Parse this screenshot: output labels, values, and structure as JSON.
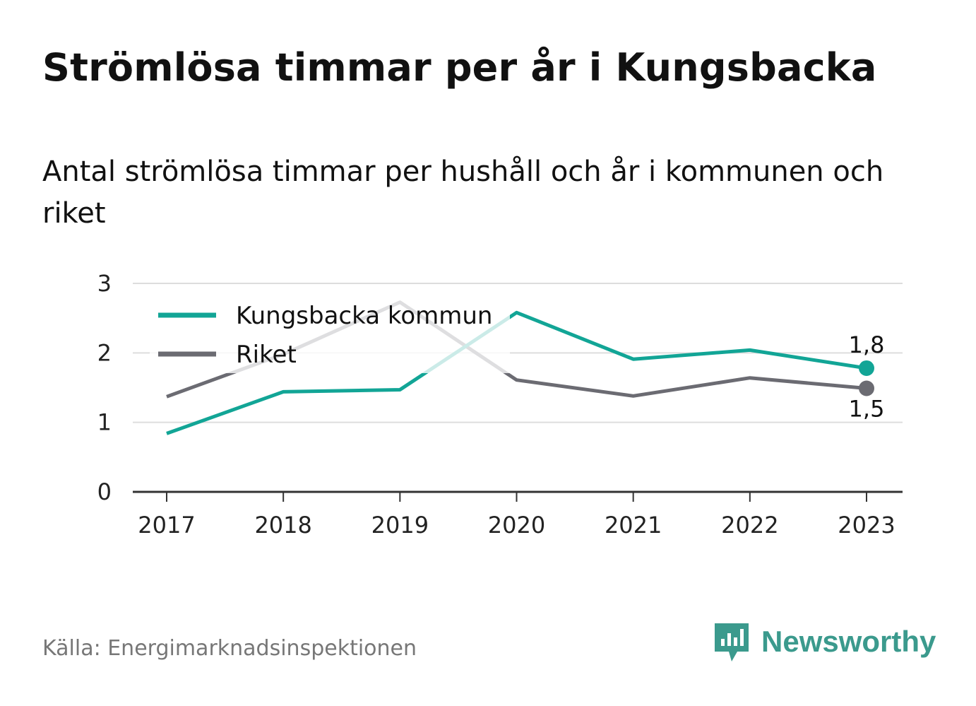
{
  "title": "Strömlösa timmar per år i Kungsbacka",
  "subtitle": "Antal strömlösa timmar per hushåll och år i kommunen och riket",
  "source": "Källa: Energimarknadsinspektionen",
  "brand": {
    "name": "Newsworthy",
    "color": "#3b9a8d"
  },
  "chart_data": {
    "type": "line",
    "x": [
      "2017",
      "2018",
      "2019",
      "2020",
      "2021",
      "2022",
      "2023"
    ],
    "y_ticks": [
      "0",
      "1",
      "2",
      "3"
    ],
    "ylim": [
      0,
      3
    ],
    "grid": true,
    "legend_position": "top-left",
    "series": [
      {
        "name": "Kungsbacka kommun",
        "color": "#12a596",
        "values": [
          0.84,
          1.44,
          1.47,
          2.58,
          1.91,
          2.04,
          1.78
        ],
        "end_label": "1,8"
      },
      {
        "name": "Riket",
        "color": "#6b6b72",
        "values": [
          1.37,
          1.98,
          2.73,
          1.61,
          1.38,
          1.64,
          1.49
        ],
        "end_label": "1,5"
      }
    ]
  }
}
